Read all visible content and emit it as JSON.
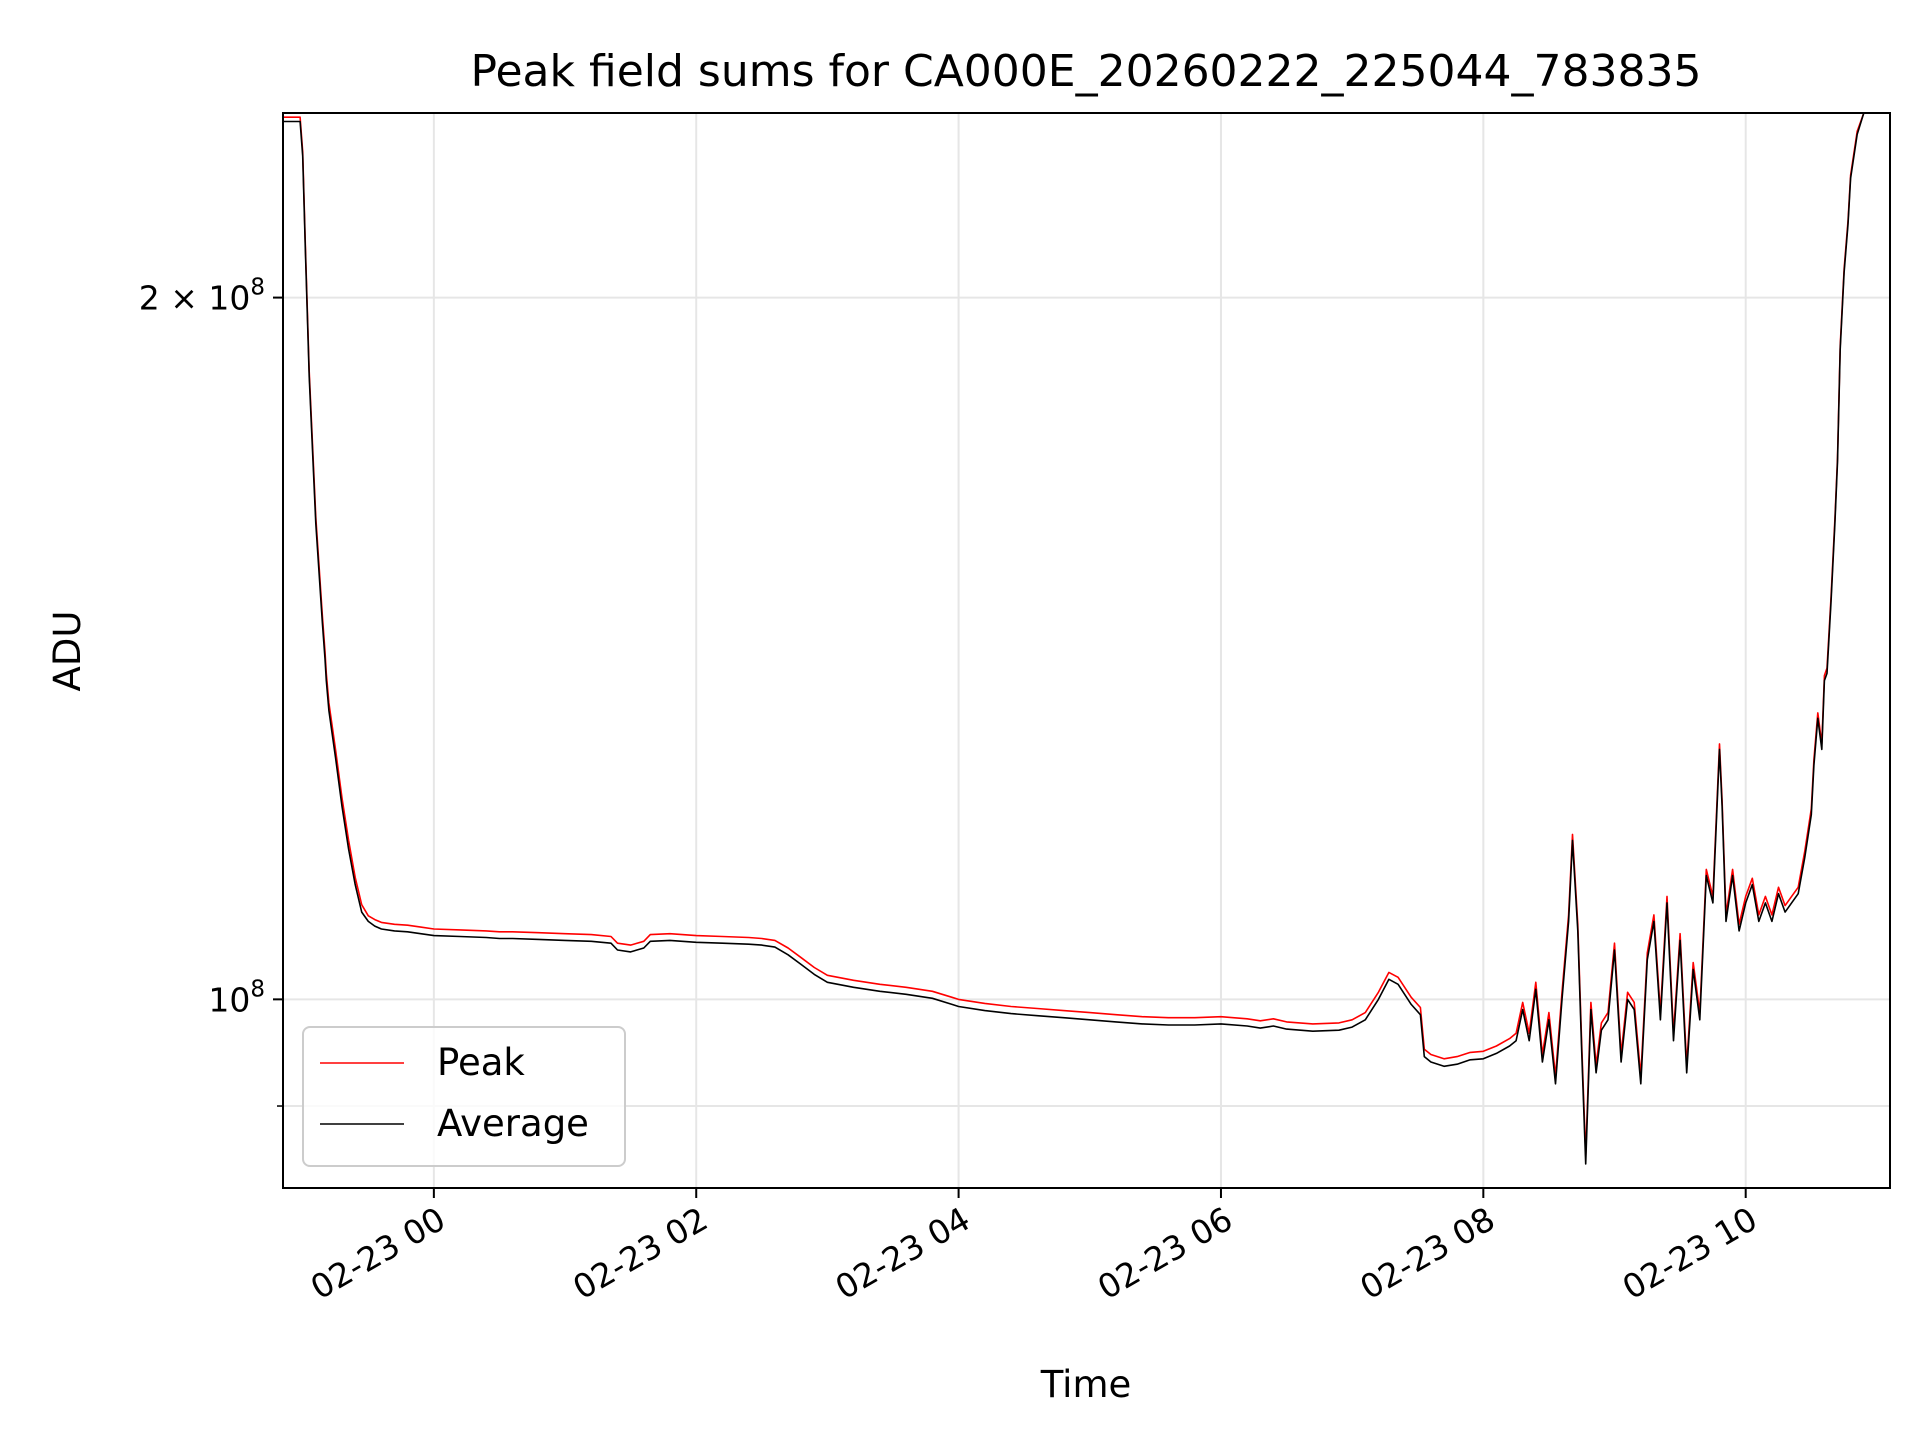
{
  "chart_data": {
    "type": "line",
    "title": "Peak field sums for CA000E_20260222_225044_783835",
    "xlabel": "Time",
    "ylabel": "ADU",
    "yscale": "log",
    "xlim": [
      -1.15,
      11.1
    ],
    "ylim": [
      83000000,
      240000000
    ],
    "grid": true,
    "legend_position": "lower-left",
    "x_units": "hours relative to 2026-02-23 00:00",
    "xticks": [
      {
        "value": 0,
        "label": "02-23 00"
      },
      {
        "value": 2,
        "label": "02-23 02"
      },
      {
        "value": 4,
        "label": "02-23 04"
      },
      {
        "value": 6,
        "label": "02-23 06"
      },
      {
        "value": 8,
        "label": "02-23 08"
      },
      {
        "value": 10,
        "label": "02-23 10"
      }
    ],
    "yticks_major": [
      {
        "value": 100000000,
        "base": "10",
        "exp": "8",
        "mantissa": ""
      },
      {
        "value": 200000000,
        "base": "10",
        "exp": "8",
        "mantissa": "2"
      }
    ],
    "yticks_minor": [
      90000000
    ],
    "legend": {
      "peak": "Peak",
      "average": "Average"
    },
    "colors": {
      "peak": "#ff0000",
      "average": "#000000",
      "grid": "#e6e6e6",
      "frame": "#000000"
    },
    "series": [
      {
        "name": "Average",
        "x": [
          -1.15,
          -1.02,
          -1.0,
          -0.98,
          -0.95,
          -0.9,
          -0.85,
          -0.83,
          -0.82,
          -0.8,
          -0.75,
          -0.7,
          -0.65,
          -0.6,
          -0.55,
          -0.5,
          -0.45,
          -0.4,
          -0.3,
          -0.2,
          -0.1,
          0.0,
          0.2,
          0.4,
          0.5,
          0.6,
          0.8,
          1.0,
          1.2,
          1.35,
          1.4,
          1.5,
          1.6,
          1.65,
          1.8,
          2.0,
          2.2,
          2.4,
          2.5,
          2.6,
          2.7,
          2.8,
          2.9,
          3.0,
          3.2,
          3.4,
          3.6,
          3.8,
          3.95,
          4.0,
          4.2,
          4.4,
          4.6,
          4.8,
          5.0,
          5.2,
          5.4,
          5.6,
          5.8,
          6.0,
          6.2,
          6.3,
          6.4,
          6.5,
          6.7,
          6.9,
          7.0,
          7.1,
          7.2,
          7.28,
          7.35,
          7.45,
          7.52,
          7.55,
          7.6,
          7.7,
          7.8,
          7.9,
          8.0,
          8.1,
          8.2,
          8.25,
          8.3,
          8.35,
          8.4,
          8.45,
          8.5,
          8.55,
          8.6,
          8.65,
          8.68,
          8.72,
          8.75,
          8.78,
          8.82,
          8.86,
          8.9,
          8.95,
          9.0,
          9.05,
          9.1,
          9.15,
          9.2,
          9.25,
          9.3,
          9.35,
          9.4,
          9.45,
          9.5,
          9.55,
          9.6,
          9.65,
          9.7,
          9.75,
          9.8,
          9.82,
          9.85,
          9.9,
          9.95,
          10.0,
          10.05,
          10.1,
          10.15,
          10.2,
          10.25,
          10.3,
          10.35,
          10.4,
          10.45,
          10.5,
          10.52,
          10.55,
          10.58,
          10.6,
          10.62,
          10.65,
          10.68,
          10.7,
          10.72,
          10.75,
          10.78,
          10.8,
          10.85,
          10.9,
          10.95,
          11.0,
          11.1
        ],
        "y": [
          238000000,
          238000000,
          230000000,
          210000000,
          185000000,
          160000000,
          145000000,
          140000000,
          137000000,
          133000000,
          127000000,
          121000000,
          116000000,
          112000000,
          109000000,
          108000000,
          107500000,
          107200000,
          107000000,
          106900000,
          106700000,
          106500000,
          106400000,
          106300000,
          106200000,
          106200000,
          106100000,
          106000000,
          105900000,
          105700000,
          105000000,
          104800000,
          105200000,
          105900000,
          106000000,
          105800000,
          105700000,
          105600000,
          105500000,
          105300000,
          104500000,
          103500000,
          102500000,
          101700000,
          101200000,
          100800000,
          100500000,
          100100000,
          99500000,
          99300000,
          98900000,
          98600000,
          98400000,
          98200000,
          98000000,
          97800000,
          97600000,
          97500000,
          97500000,
          97600000,
          97400000,
          97200000,
          97400000,
          97100000,
          96900000,
          97000000,
          97300000,
          98000000,
          100000000,
          102000000,
          101500000,
          99500000,
          98500000,
          94500000,
          94000000,
          93600000,
          93800000,
          94200000,
          94300000,
          94800000,
          95500000,
          96000000,
          99000000,
          96000000,
          101000000,
          94000000,
          98000000,
          92000000,
          100000000,
          108000000,
          117000000,
          107000000,
          95000000,
          85000000,
          99000000,
          93000000,
          97000000,
          98000000,
          105000000,
          94000000,
          100000000,
          99000000,
          92000000,
          104000000,
          108000000,
          98000000,
          110000000,
          96000000,
          106000000,
          93000000,
          103000000,
          98000000,
          113000000,
          110000000,
          128000000,
          121000000,
          108000000,
          113000000,
          107000000,
          110000000,
          112000000,
          108000000,
          110000000,
          108000000,
          111000000,
          109000000,
          110000000,
          111000000,
          115000000,
          120000000,
          126000000,
          132000000,
          128000000,
          137000000,
          138000000,
          148000000,
          160000000,
          170000000,
          190000000,
          205000000,
          215000000,
          225000000,
          235000000,
          240000000,
          240000000,
          240000000,
          240000000
        ]
      },
      {
        "name": "Peak",
        "x": [
          -1.15,
          -1.02,
          -1.0,
          -0.98,
          -0.95,
          -0.9,
          -0.85,
          -0.83,
          -0.82,
          -0.8,
          -0.75,
          -0.7,
          -0.65,
          -0.6,
          -0.55,
          -0.5,
          -0.45,
          -0.4,
          -0.3,
          -0.2,
          -0.1,
          0.0,
          0.2,
          0.4,
          0.5,
          0.6,
          0.8,
          1.0,
          1.2,
          1.35,
          1.4,
          1.5,
          1.6,
          1.65,
          1.8,
          2.0,
          2.2,
          2.4,
          2.5,
          2.6,
          2.7,
          2.8,
          2.9,
          3.0,
          3.2,
          3.4,
          3.6,
          3.8,
          3.95,
          4.0,
          4.2,
          4.4,
          4.6,
          4.8,
          5.0,
          5.2,
          5.4,
          5.6,
          5.8,
          6.0,
          6.2,
          6.3,
          6.4,
          6.5,
          6.7,
          6.9,
          7.0,
          7.1,
          7.2,
          7.28,
          7.35,
          7.45,
          7.52,
          7.55,
          7.6,
          7.7,
          7.8,
          7.9,
          8.0,
          8.1,
          8.2,
          8.25,
          8.3,
          8.35,
          8.4,
          8.45,
          8.5,
          8.55,
          8.6,
          8.65,
          8.68,
          8.72,
          8.75,
          8.78,
          8.82,
          8.86,
          8.9,
          8.95,
          9.0,
          9.05,
          9.1,
          9.15,
          9.2,
          9.25,
          9.3,
          9.35,
          9.4,
          9.45,
          9.5,
          9.55,
          9.6,
          9.65,
          9.7,
          9.75,
          9.8,
          9.82,
          9.85,
          9.9,
          9.95,
          10.0,
          10.05,
          10.1,
          10.15,
          10.2,
          10.25,
          10.3,
          10.35,
          10.4,
          10.45,
          10.5,
          10.52,
          10.55,
          10.58,
          10.6,
          10.62,
          10.65,
          10.68,
          10.7,
          10.72,
          10.75,
          10.78,
          10.8,
          10.85,
          10.9,
          10.95,
          11.0,
          11.1
        ],
        "y": [
          239000000,
          239000000,
          231000000,
          211000000,
          186000000,
          161000000,
          146000000,
          141000000,
          138000000,
          134000000,
          128000000,
          122000000,
          117000000,
          112800000,
          109800000,
          108600000,
          108200000,
          107900000,
          107700000,
          107600000,
          107400000,
          107200000,
          107100000,
          107000000,
          106900000,
          106900000,
          106800000,
          106700000,
          106600000,
          106400000,
          105700000,
          105500000,
          105900000,
          106600000,
          106700000,
          106500000,
          106400000,
          106300000,
          106200000,
          106000000,
          105200000,
          104200000,
          103200000,
          102400000,
          101900000,
          101500000,
          101200000,
          100800000,
          100200000,
          100000000,
          99600000,
          99300000,
          99100000,
          98900000,
          98700000,
          98500000,
          98300000,
          98200000,
          98200000,
          98300000,
          98100000,
          97900000,
          98100000,
          97800000,
          97600000,
          97700000,
          98000000,
          98700000,
          100700000,
          102700000,
          102200000,
          100200000,
          99200000,
          95200000,
          94700000,
          94300000,
          94500000,
          94900000,
          95000000,
          95500000,
          96200000,
          96700000,
          99700000,
          96700000,
          101700000,
          94700000,
          98700000,
          92700000,
          100700000,
          108700000,
          117700000,
          107700000,
          95700000,
          85700000,
          99700000,
          93700000,
          97700000,
          98700000,
          105700000,
          94700000,
          100700000,
          99700000,
          92700000,
          104700000,
          108700000,
          98700000,
          110700000,
          96700000,
          106700000,
          93700000,
          103700000,
          98700000,
          113700000,
          110700000,
          128700000,
          121700000,
          108700000,
          113700000,
          107700000,
          110700000,
          112700000,
          108700000,
          110700000,
          108700000,
          111700000,
          109700000,
          110700000,
          111700000,
          115700000,
          120700000,
          126700000,
          132700000,
          128700000,
          137700000,
          138700000,
          148700000,
          160700000,
          170700000,
          190700000,
          205700000,
          215700000,
          225700000,
          235700000,
          240000000,
          240000000,
          240000000,
          240000000
        ]
      }
    ]
  }
}
